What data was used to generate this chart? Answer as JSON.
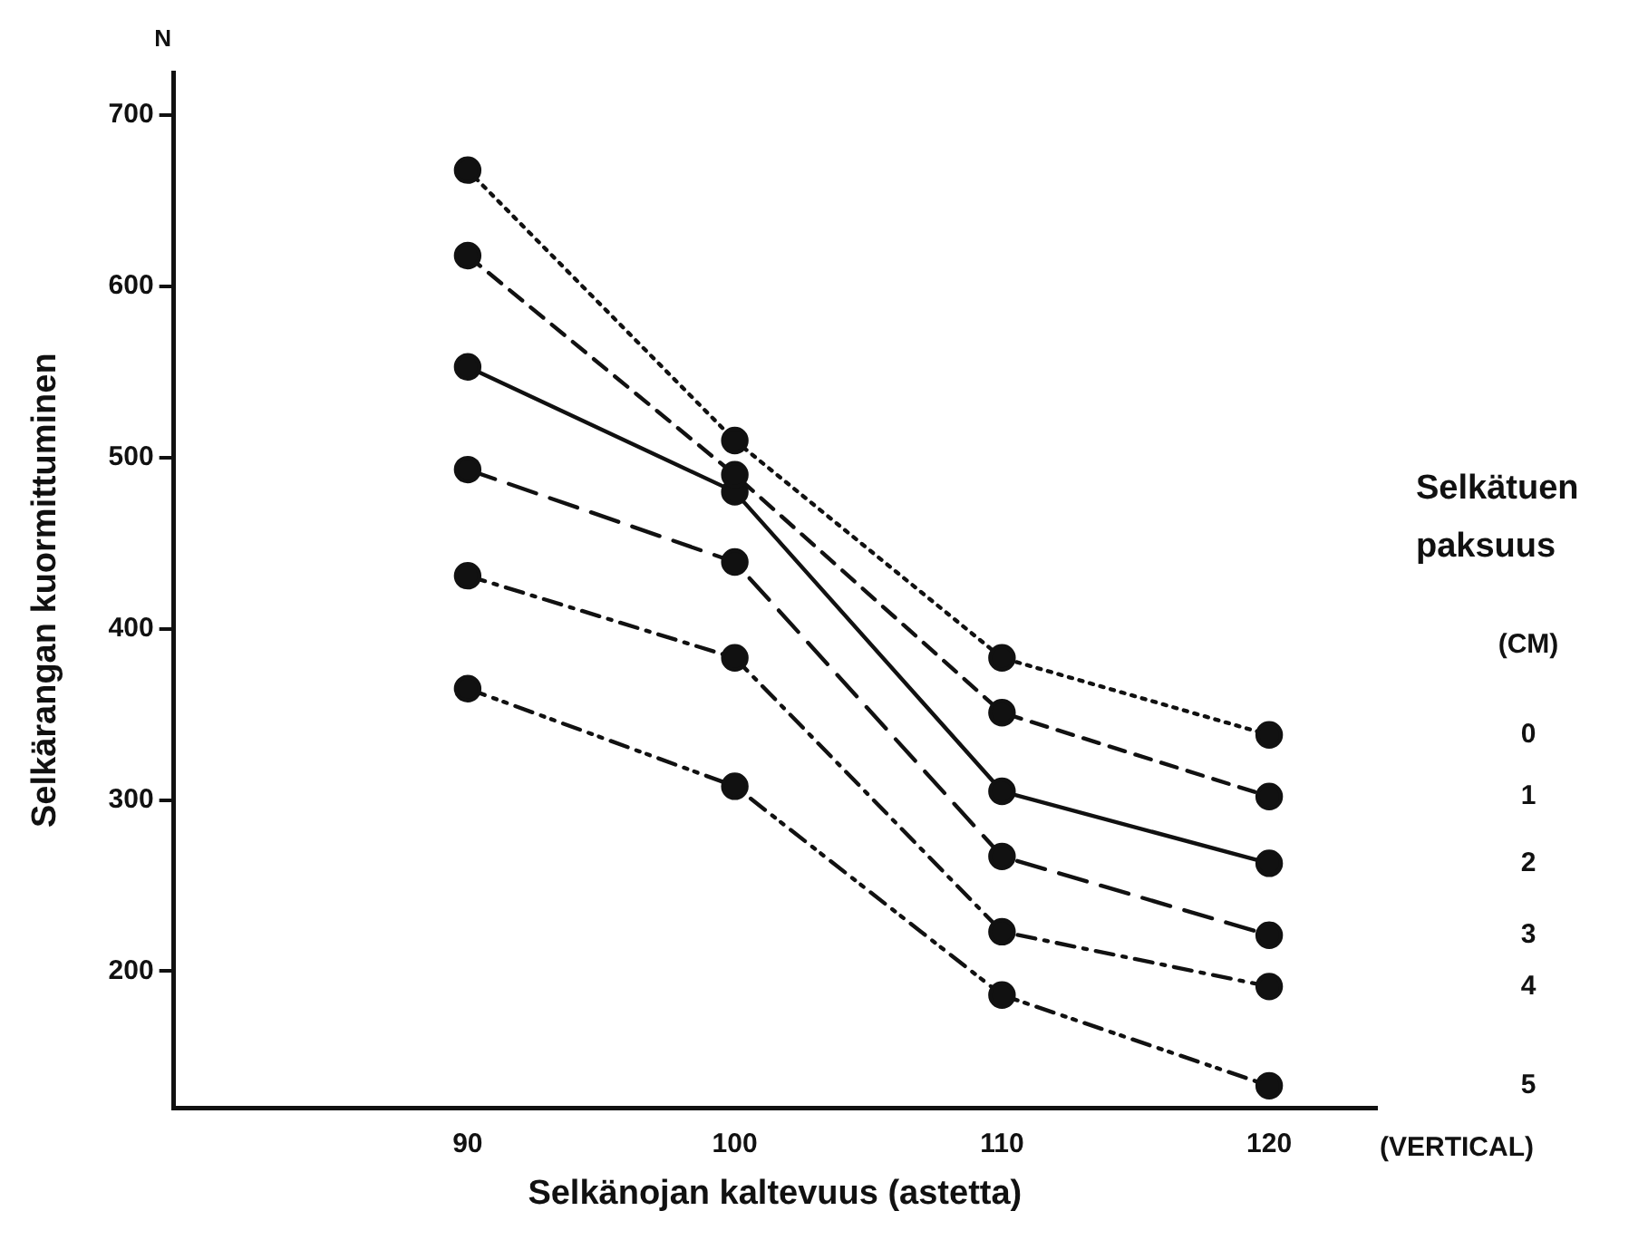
{
  "chart_data": {
    "type": "line",
    "xlabel": "Selkänojan kaltevuus (astetta)",
    "ylabel": "Selkärangan kuormittuminen",
    "legend_title": "Selkätuen paksuus (CM)",
    "annotations": [
      "N",
      "(VERTICAL)"
    ],
    "x": [
      90,
      100,
      110,
      120
    ],
    "xlim": [
      79,
      124
    ],
    "xticks": [
      90,
      100,
      110,
      120
    ],
    "ylim": [
      120,
      725
    ],
    "yticks": [
      200,
      300,
      400,
      500,
      600,
      700
    ],
    "grid": false,
    "legend": false,
    "marker": "circle",
    "series": [
      {
        "name": "0",
        "color": "#111111",
        "line_style": "dotted",
        "values": [
          668,
          510,
          383,
          338
        ]
      },
      {
        "name": "1",
        "color": "#111111",
        "line_style": "dashed",
        "values": [
          618,
          490,
          351,
          302
        ]
      },
      {
        "name": "2",
        "color": "#111111",
        "line_style": "solid",
        "values": [
          553,
          480,
          305,
          263
        ]
      },
      {
        "name": "3",
        "color": "#111111",
        "line_style": "dashed",
        "values": [
          493,
          439,
          267,
          221
        ]
      },
      {
        "name": "4",
        "color": "#111111",
        "line_style": "dashed",
        "values": [
          431,
          383,
          223,
          191
        ]
      },
      {
        "name": "5",
        "color": "#111111",
        "line_style": "dashed",
        "values": [
          365,
          308,
          186,
          133
        ]
      }
    ]
  }
}
